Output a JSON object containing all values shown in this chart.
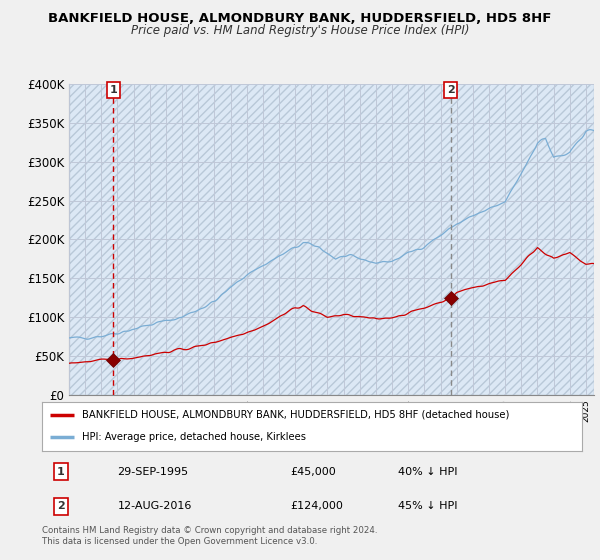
{
  "title1": "BANKFIELD HOUSE, ALMONDBURY BANK, HUDDERSFIELD, HD5 8HF",
  "title2": "Price paid vs. HM Land Registry's House Price Index (HPI)",
  "bg_color": "#f0f0f0",
  "plot_bg_color": "#dce8f5",
  "hatch_color": "#aaaaaa",
  "grid_color": "#c0c8d8",
  "ylim": [
    0,
    400000
  ],
  "yticks": [
    0,
    50000,
    100000,
    150000,
    200000,
    250000,
    300000,
    350000,
    400000
  ],
  "ytick_labels": [
    "£0",
    "£50K",
    "£100K",
    "£150K",
    "£200K",
    "£250K",
    "£300K",
    "£350K",
    "£400K"
  ],
  "sale1_year": 1995.75,
  "sale1_price": 45000,
  "sale2_year": 2016.62,
  "sale2_price": 124000,
  "hpi_color": "#7aadd4",
  "price_color": "#cc0000",
  "sale_marker_color": "#880000",
  "legend_label1": "BANKFIELD HOUSE, ALMONDBURY BANK, HUDDERSFIELD, HD5 8HF (detached house)",
  "legend_label2": "HPI: Average price, detached house, Kirklees",
  "footnote": "Contains HM Land Registry data © Crown copyright and database right 2024.\nThis data is licensed under the Open Government Licence v3.0.",
  "xmin": 1993.0,
  "xmax": 2025.5
}
